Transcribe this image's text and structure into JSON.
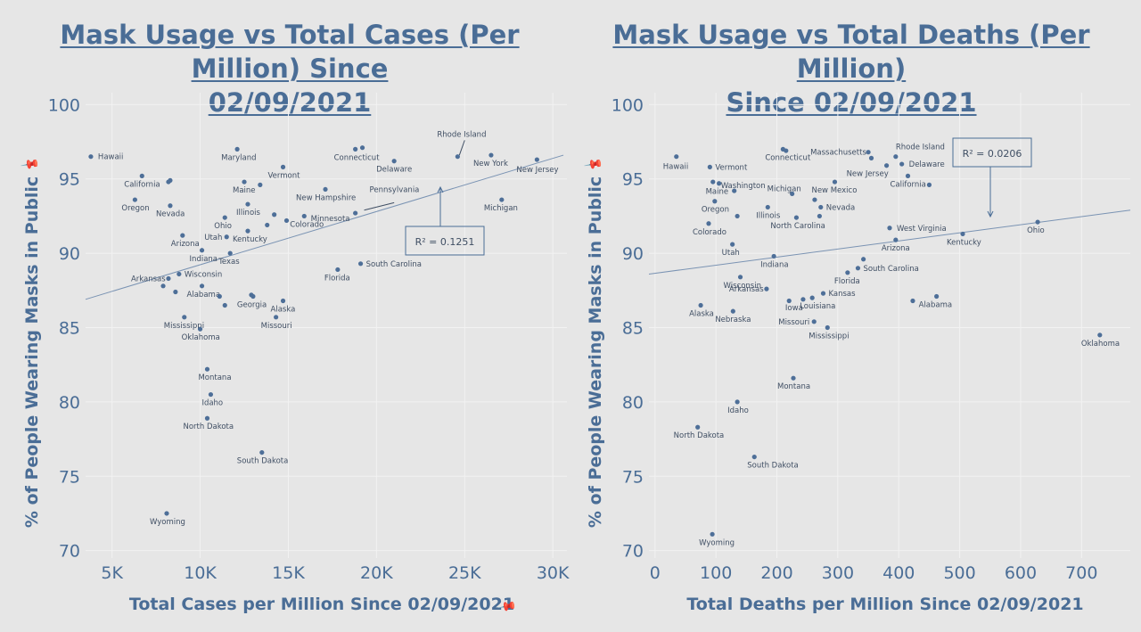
{
  "pin_glyph": "📌",
  "chart_data": [
    {
      "type": "scatter",
      "title_lines": [
        "Mask Usage vs Total Cases (Per Million) Since",
        "02/09/2021"
      ],
      "xlabel": "Total Cases per Million Since 02/09/2021",
      "ylabel": "% of People Wearing Masks in Public",
      "xlim": [
        3500,
        30800
      ],
      "ylim": [
        69.5,
        100.8
      ],
      "xticks": [
        5000,
        10000,
        15000,
        20000,
        25000,
        30000
      ],
      "xtick_labels": [
        "5K",
        "10K",
        "15K",
        "20K",
        "25K",
        "30K"
      ],
      "yticks": [
        70,
        75,
        80,
        85,
        90,
        95,
        100
      ],
      "ytick_labels": [
        "70",
        "75",
        "80",
        "85",
        "90",
        "95",
        "100"
      ],
      "grid": true,
      "trendline": {
        "x1": 3500,
        "y1": 86.9,
        "x2": 30600,
        "y2": 96.6
      },
      "r2_annotation": "R² = 0.1251",
      "points": [
        {
          "name": "Hawaii",
          "x": 3800,
          "y": 96.5
        },
        {
          "name": "California",
          "x": 6700,
          "y": 95.2
        },
        {
          "name": "",
          "x": 8300,
          "y": 94.9
        },
        {
          "name": "",
          "x": 8200,
          "y": 94.8
        },
        {
          "name": "Oregon",
          "x": 6300,
          "y": 93.6
        },
        {
          "name": "Nevada",
          "x": 8300,
          "y": 93.2
        },
        {
          "name": "Arizona",
          "x": 9000,
          "y": 91.2
        },
        {
          "name": "Arkansas",
          "x": 8200,
          "y": 88.3
        },
        {
          "name": "Wisconsin",
          "x": 8800,
          "y": 88.6
        },
        {
          "name": "",
          "x": 7900,
          "y": 87.8
        },
        {
          "name": "",
          "x": 8600,
          "y": 87.4
        },
        {
          "name": "Indiana",
          "x": 10100,
          "y": 90.2
        },
        {
          "name": "Alabama",
          "x": 10100,
          "y": 87.8
        },
        {
          "name": "Mississippi",
          "x": 9100,
          "y": 85.7
        },
        {
          "name": "Oklahoma",
          "x": 10000,
          "y": 84.9
        },
        {
          "name": "Montana",
          "x": 10400,
          "y": 82.2
        },
        {
          "name": "Idaho",
          "x": 10600,
          "y": 80.5
        },
        {
          "name": "North Dakota",
          "x": 10400,
          "y": 78.9
        },
        {
          "name": "Wyoming",
          "x": 8100,
          "y": 72.5
        },
        {
          "name": "Maryland",
          "x": 12100,
          "y": 97.0
        },
        {
          "name": "Maine",
          "x": 12500,
          "y": 94.8
        },
        {
          "name": "",
          "x": 13400,
          "y": 94.6
        },
        {
          "name": "Vermont",
          "x": 14700,
          "y": 95.8
        },
        {
          "name": "Illinois",
          "x": 12700,
          "y": 93.3
        },
        {
          "name": "Ohio",
          "x": 11400,
          "y": 92.4
        },
        {
          "name": "Utah",
          "x": 11500,
          "y": 91.1
        },
        {
          "name": "Kentucky",
          "x": 12700,
          "y": 91.5
        },
        {
          "name": "Texas",
          "x": 11700,
          "y": 90.0
        },
        {
          "name": "",
          "x": 11100,
          "y": 87.1
        },
        {
          "name": "",
          "x": 11400,
          "y": 86.5
        },
        {
          "name": "Georgia",
          "x": 13000,
          "y": 87.1
        },
        {
          "name": "",
          "x": 12900,
          "y": 87.2
        },
        {
          "name": "",
          "x": 13800,
          "y": 91.9
        },
        {
          "name": "",
          "x": 14200,
          "y": 92.6
        },
        {
          "name": "",
          "x": 14900,
          "y": 92.2
        },
        {
          "name": "Colorado",
          "x": 15900,
          "y": 92.5
        },
        {
          "name": "New Hampshire",
          "x": 17100,
          "y": 94.3
        },
        {
          "name": "Minnesota",
          "x": 18800,
          "y": 92.7
        },
        {
          "name": "Alaska",
          "x": 14700,
          "y": 86.8
        },
        {
          "name": "Missouri",
          "x": 14300,
          "y": 85.7
        },
        {
          "name": "South Dakota",
          "x": 13500,
          "y": 76.6
        },
        {
          "name": "Connecticut",
          "x": 18800,
          "y": 97.0
        },
        {
          "name": "",
          "x": 19200,
          "y": 97.1
        },
        {
          "name": "Delaware",
          "x": 21000,
          "y": 96.2
        },
        {
          "name": "Florida",
          "x": 17800,
          "y": 88.9
        },
        {
          "name": "South Carolina",
          "x": 19100,
          "y": 89.3
        },
        {
          "name": "Rhode Island",
          "x": 24600,
          "y": 96.5
        },
        {
          "name": "New York",
          "x": 26500,
          "y": 96.6
        },
        {
          "name": "New Jersey",
          "x": 29100,
          "y": 96.3
        },
        {
          "name": "Michigan",
          "x": 27100,
          "y": 93.6
        }
      ]
    },
    {
      "type": "scatter",
      "title_lines": [
        "Mask Usage vs Total Deaths (Per Million)",
        "Since 02/09/2021"
      ],
      "xlabel": "Total Deaths per Million Since 02/09/2021",
      "ylabel": "% of People Wearing Masks in Public",
      "xlim": [
        -10,
        780
      ],
      "ylim": [
        69.5,
        100.8
      ],
      "xticks": [
        0,
        100,
        200,
        300,
        400,
        500,
        600,
        700
      ],
      "xtick_labels": [
        "0",
        "100",
        "200",
        "300",
        "400",
        "500",
        "600",
        "700"
      ],
      "yticks": [
        70,
        75,
        80,
        85,
        90,
        95,
        100
      ],
      "ytick_labels": [
        "70",
        "75",
        "80",
        "85",
        "90",
        "95",
        "100"
      ],
      "grid": true,
      "trendline": {
        "x1": -10,
        "y1": 88.6,
        "x2": 780,
        "y2": 92.9
      },
      "r2_annotation": "R² = 0.0206",
      "points": [
        {
          "name": "Hawaii",
          "x": 35,
          "y": 96.5
        },
        {
          "name": "Vermont",
          "x": 90,
          "y": 95.8
        },
        {
          "name": "",
          "x": 95,
          "y": 94.8
        },
        {
          "name": "Maine",
          "x": 105,
          "y": 94.7
        },
        {
          "name": "Washington",
          "x": 130,
          "y": 94.2
        },
        {
          "name": "Oregon",
          "x": 98,
          "y": 93.5
        },
        {
          "name": "",
          "x": 135,
          "y": 92.5
        },
        {
          "name": "Colorado",
          "x": 88,
          "y": 92.0
        },
        {
          "name": "Utah",
          "x": 127,
          "y": 90.6
        },
        {
          "name": "Illinois",
          "x": 185,
          "y": 93.1
        },
        {
          "name": "Indiana",
          "x": 195,
          "y": 89.8
        },
        {
          "name": "Wisconsin",
          "x": 140,
          "y": 88.4
        },
        {
          "name": "Arkansas",
          "x": 183,
          "y": 87.6
        },
        {
          "name": "Alaska",
          "x": 75,
          "y": 86.5
        },
        {
          "name": "Nebraska",
          "x": 128,
          "y": 86.1
        },
        {
          "name": "Montana",
          "x": 227,
          "y": 81.6
        },
        {
          "name": "Idaho",
          "x": 135,
          "y": 80.0
        },
        {
          "name": "North Dakota",
          "x": 70,
          "y": 78.3
        },
        {
          "name": "South Dakota",
          "x": 163,
          "y": 76.3
        },
        {
          "name": "Wyoming",
          "x": 94,
          "y": 71.1
        },
        {
          "name": "Connecticut",
          "x": 210,
          "y": 97.0
        },
        {
          "name": "",
          "x": 215,
          "y": 96.9
        },
        {
          "name": "Michigan",
          "x": 225,
          "y": 94.0
        },
        {
          "name": "New Mexico",
          "x": 295,
          "y": 94.8
        },
        {
          "name": "",
          "x": 262,
          "y": 93.6
        },
        {
          "name": "Nevada",
          "x": 272,
          "y": 93.1
        },
        {
          "name": "North Carolina",
          "x": 232,
          "y": 92.4
        },
        {
          "name": "",
          "x": 270,
          "y": 92.5
        },
        {
          "name": "Massachusetts",
          "x": 350,
          "y": 96.8
        },
        {
          "name": "",
          "x": 355,
          "y": 96.4
        },
        {
          "name": "New Jersey",
          "x": 380,
          "y": 95.9
        },
        {
          "name": "Rhode Island",
          "x": 395,
          "y": 96.5
        },
        {
          "name": "Delaware",
          "x": 405,
          "y": 96.0
        },
        {
          "name": "California",
          "x": 415,
          "y": 95.2
        },
        {
          "name": "",
          "x": 450,
          "y": 94.6
        },
        {
          "name": "West Virginia",
          "x": 385,
          "y": 91.7
        },
        {
          "name": "Arizona",
          "x": 395,
          "y": 90.9
        },
        {
          "name": "Kentucky",
          "x": 505,
          "y": 91.3
        },
        {
          "name": "Ohio",
          "x": 628,
          "y": 92.1
        },
        {
          "name": "South Carolina",
          "x": 333,
          "y": 89.0
        },
        {
          "name": "",
          "x": 342,
          "y": 89.6
        },
        {
          "name": "Florida",
          "x": 316,
          "y": 88.7
        },
        {
          "name": "Kansas",
          "x": 276,
          "y": 87.3
        },
        {
          "name": "Iowa",
          "x": 243,
          "y": 86.9
        },
        {
          "name": "Louisiana",
          "x": 258,
          "y": 87.0
        },
        {
          "name": "",
          "x": 220,
          "y": 86.8
        },
        {
          "name": "Missouri",
          "x": 261,
          "y": 85.4
        },
        {
          "name": "Mississippi",
          "x": 283,
          "y": 85.0
        },
        {
          "name": "Alabama",
          "x": 462,
          "y": 87.1
        },
        {
          "name": "",
          "x": 423,
          "y": 86.8
        },
        {
          "name": "Oklahoma",
          "x": 730,
          "y": 84.5
        }
      ]
    }
  ]
}
